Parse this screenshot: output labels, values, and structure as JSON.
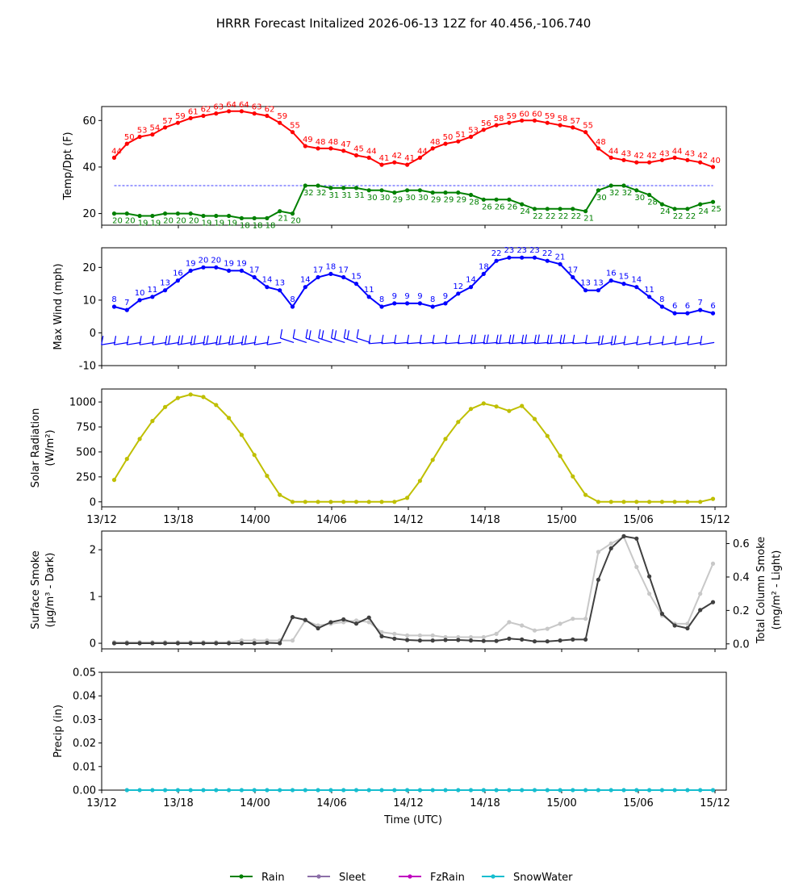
{
  "title": "HRRR Forecast Initalized 2026-06-13 12Z for 40.456,-106.740",
  "x_ticks": [
    "13/12",
    "13/18",
    "14/00",
    "14/06",
    "14/12",
    "14/18",
    "15/00",
    "15/06",
    "15/12"
  ],
  "x_axis_label": "Time (UTC)",
  "legend": [
    {
      "label": "Rain",
      "color": "#008000"
    },
    {
      "label": "Sleet",
      "color": "#8c6fa8"
    },
    {
      "label": "FzRain",
      "color": "#c000c0"
    },
    {
      "label": "SnowWater",
      "color": "#17becf"
    }
  ],
  "chart_data": [
    {
      "type": "line",
      "ylabel": "Temp/Dpt (F)",
      "ylim": [
        15,
        66
      ],
      "yticks": [
        20,
        40,
        60
      ],
      "reference_line": {
        "y": 32,
        "color": "#0000ff",
        "style": "dashed"
      },
      "series": [
        {
          "color": "#ff0000",
          "values": [
            44,
            50,
            53,
            54,
            57,
            59,
            61,
            62,
            63,
            64,
            64,
            63,
            62,
            59,
            55,
            49,
            48,
            48,
            47,
            45,
            44,
            41,
            42,
            41,
            44,
            48,
            50,
            51,
            53,
            56,
            58,
            59,
            60,
            60,
            59,
            58,
            57,
            55,
            48,
            44,
            43,
            42,
            42,
            43,
            44,
            43,
            42,
            40
          ]
        },
        {
          "color": "#008000",
          "values": [
            20,
            20,
            19,
            19,
            20,
            20,
            20,
            19,
            19,
            19,
            18,
            18,
            18,
            21,
            20,
            32,
            32,
            31,
            31,
            31,
            30,
            30,
            29,
            30,
            30,
            29,
            29,
            29,
            28,
            26,
            26,
            26,
            24,
            22,
            22,
            22,
            22,
            21,
            30,
            32,
            32,
            30,
            28,
            24,
            22,
            22,
            24,
            25
          ]
        }
      ]
    },
    {
      "type": "line",
      "ylabel": "Max Wind (mph)",
      "ylim": [
        -10,
        26
      ],
      "yticks": [
        -10,
        0,
        10,
        20
      ],
      "series": [
        {
          "color": "#0000ff",
          "values": [
            8,
            7,
            10,
            11,
            13,
            16,
            19,
            20,
            20,
            19,
            19,
            17,
            14,
            13,
            8,
            14,
            17,
            18,
            17,
            15,
            11,
            8,
            9,
            9,
            9,
            8,
            9,
            12,
            14,
            18,
            22,
            23,
            23,
            23,
            22,
            21,
            17,
            13,
            13,
            16,
            15,
            14,
            11,
            8,
            6,
            6,
            7,
            6
          ]
        }
      ],
      "wind_barbs_at": 0
    },
    {
      "type": "line",
      "ylabel": "Solar Radiation",
      "ylabel2": "(W/m²)",
      "ylim": [
        -50,
        1130
      ],
      "yticks": [
        0,
        250,
        500,
        750,
        1000
      ],
      "series": [
        {
          "color": "#bfbf00",
          "values": [
            220,
            430,
            630,
            810,
            950,
            1040,
            1075,
            1050,
            970,
            840,
            670,
            470,
            260,
            70,
            0,
            0,
            0,
            0,
            0,
            0,
            0,
            0,
            0,
            40,
            210,
            420,
            630,
            800,
            930,
            985,
            955,
            910,
            960,
            830,
            660,
            460,
            255,
            70,
            0,
            0,
            0,
            0,
            0,
            0,
            0,
            0,
            0,
            30
          ]
        }
      ]
    },
    {
      "type": "line",
      "ylabel": "Surface Smoke",
      "ylabel2": "(μg/m³ - Dark)",
      "ylabel_right": "Total Column Smoke",
      "ylabel_right2": "(mg/m² - Light)",
      "ylim": [
        -0.12,
        2.4
      ],
      "yticks": [
        0,
        1,
        2
      ],
      "ylim_right": [
        -0.03,
        0.675
      ],
      "yticks_right": [
        0.0,
        0.2,
        0.4,
        0.6
      ],
      "series": [
        {
          "name_hint": "dark",
          "color": "#404040",
          "axis": "left",
          "values": [
            0,
            0,
            0,
            0,
            0,
            0,
            0,
            0,
            0,
            0,
            0,
            0,
            0.01,
            0,
            0.56,
            0.5,
            0.32,
            0.45,
            0.51,
            0.42,
            0.55,
            0.15,
            0.1,
            0.07,
            0.06,
            0.06,
            0.07,
            0.07,
            0.06,
            0.05,
            0.05,
            0.1,
            0.08,
            0.04,
            0.04,
            0.06,
            0.08,
            0.08,
            1.36,
            2.03,
            2.29,
            2.24,
            1.43,
            0.63,
            0.38,
            0.32,
            0.71,
            0.88
          ]
        },
        {
          "name_hint": "light",
          "color": "#c8c8c8",
          "axis": "right",
          "values": [
            0.01,
            0.01,
            0.01,
            0.01,
            0.01,
            0.01,
            0.01,
            0.01,
            0.01,
            0.01,
            0.02,
            0.02,
            0.02,
            0.02,
            0.02,
            0.14,
            0.11,
            0.12,
            0.13,
            0.14,
            0.13,
            0.07,
            0.06,
            0.05,
            0.05,
            0.05,
            0.04,
            0.04,
            0.04,
            0.04,
            0.06,
            0.13,
            0.11,
            0.08,
            0.09,
            0.12,
            0.15,
            0.15,
            0.55,
            0.6,
            0.64,
            0.46,
            0.3,
            0.17,
            0.12,
            0.12,
            0.3,
            0.48
          ]
        }
      ]
    },
    {
      "type": "line",
      "ylabel": "Precip (in)",
      "ylim": [
        0,
        0.05
      ],
      "yticks": [
        "0.00",
        "0.01",
        "0.02",
        "0.03",
        "0.04",
        "0.05"
      ],
      "series": [
        {
          "color": "#17becf",
          "start_index": 1,
          "values": [
            0,
            0,
            0,
            0,
            0,
            0,
            0,
            0,
            0,
            0,
            0,
            0,
            0,
            0,
            0,
            0,
            0,
            0,
            0,
            0,
            0,
            0,
            0,
            0,
            0,
            0,
            0,
            0,
            0,
            0,
            0,
            0,
            0,
            0,
            0,
            0,
            0,
            0,
            0,
            0,
            0,
            0,
            0,
            0,
            0,
            0,
            0
          ]
        }
      ]
    }
  ]
}
